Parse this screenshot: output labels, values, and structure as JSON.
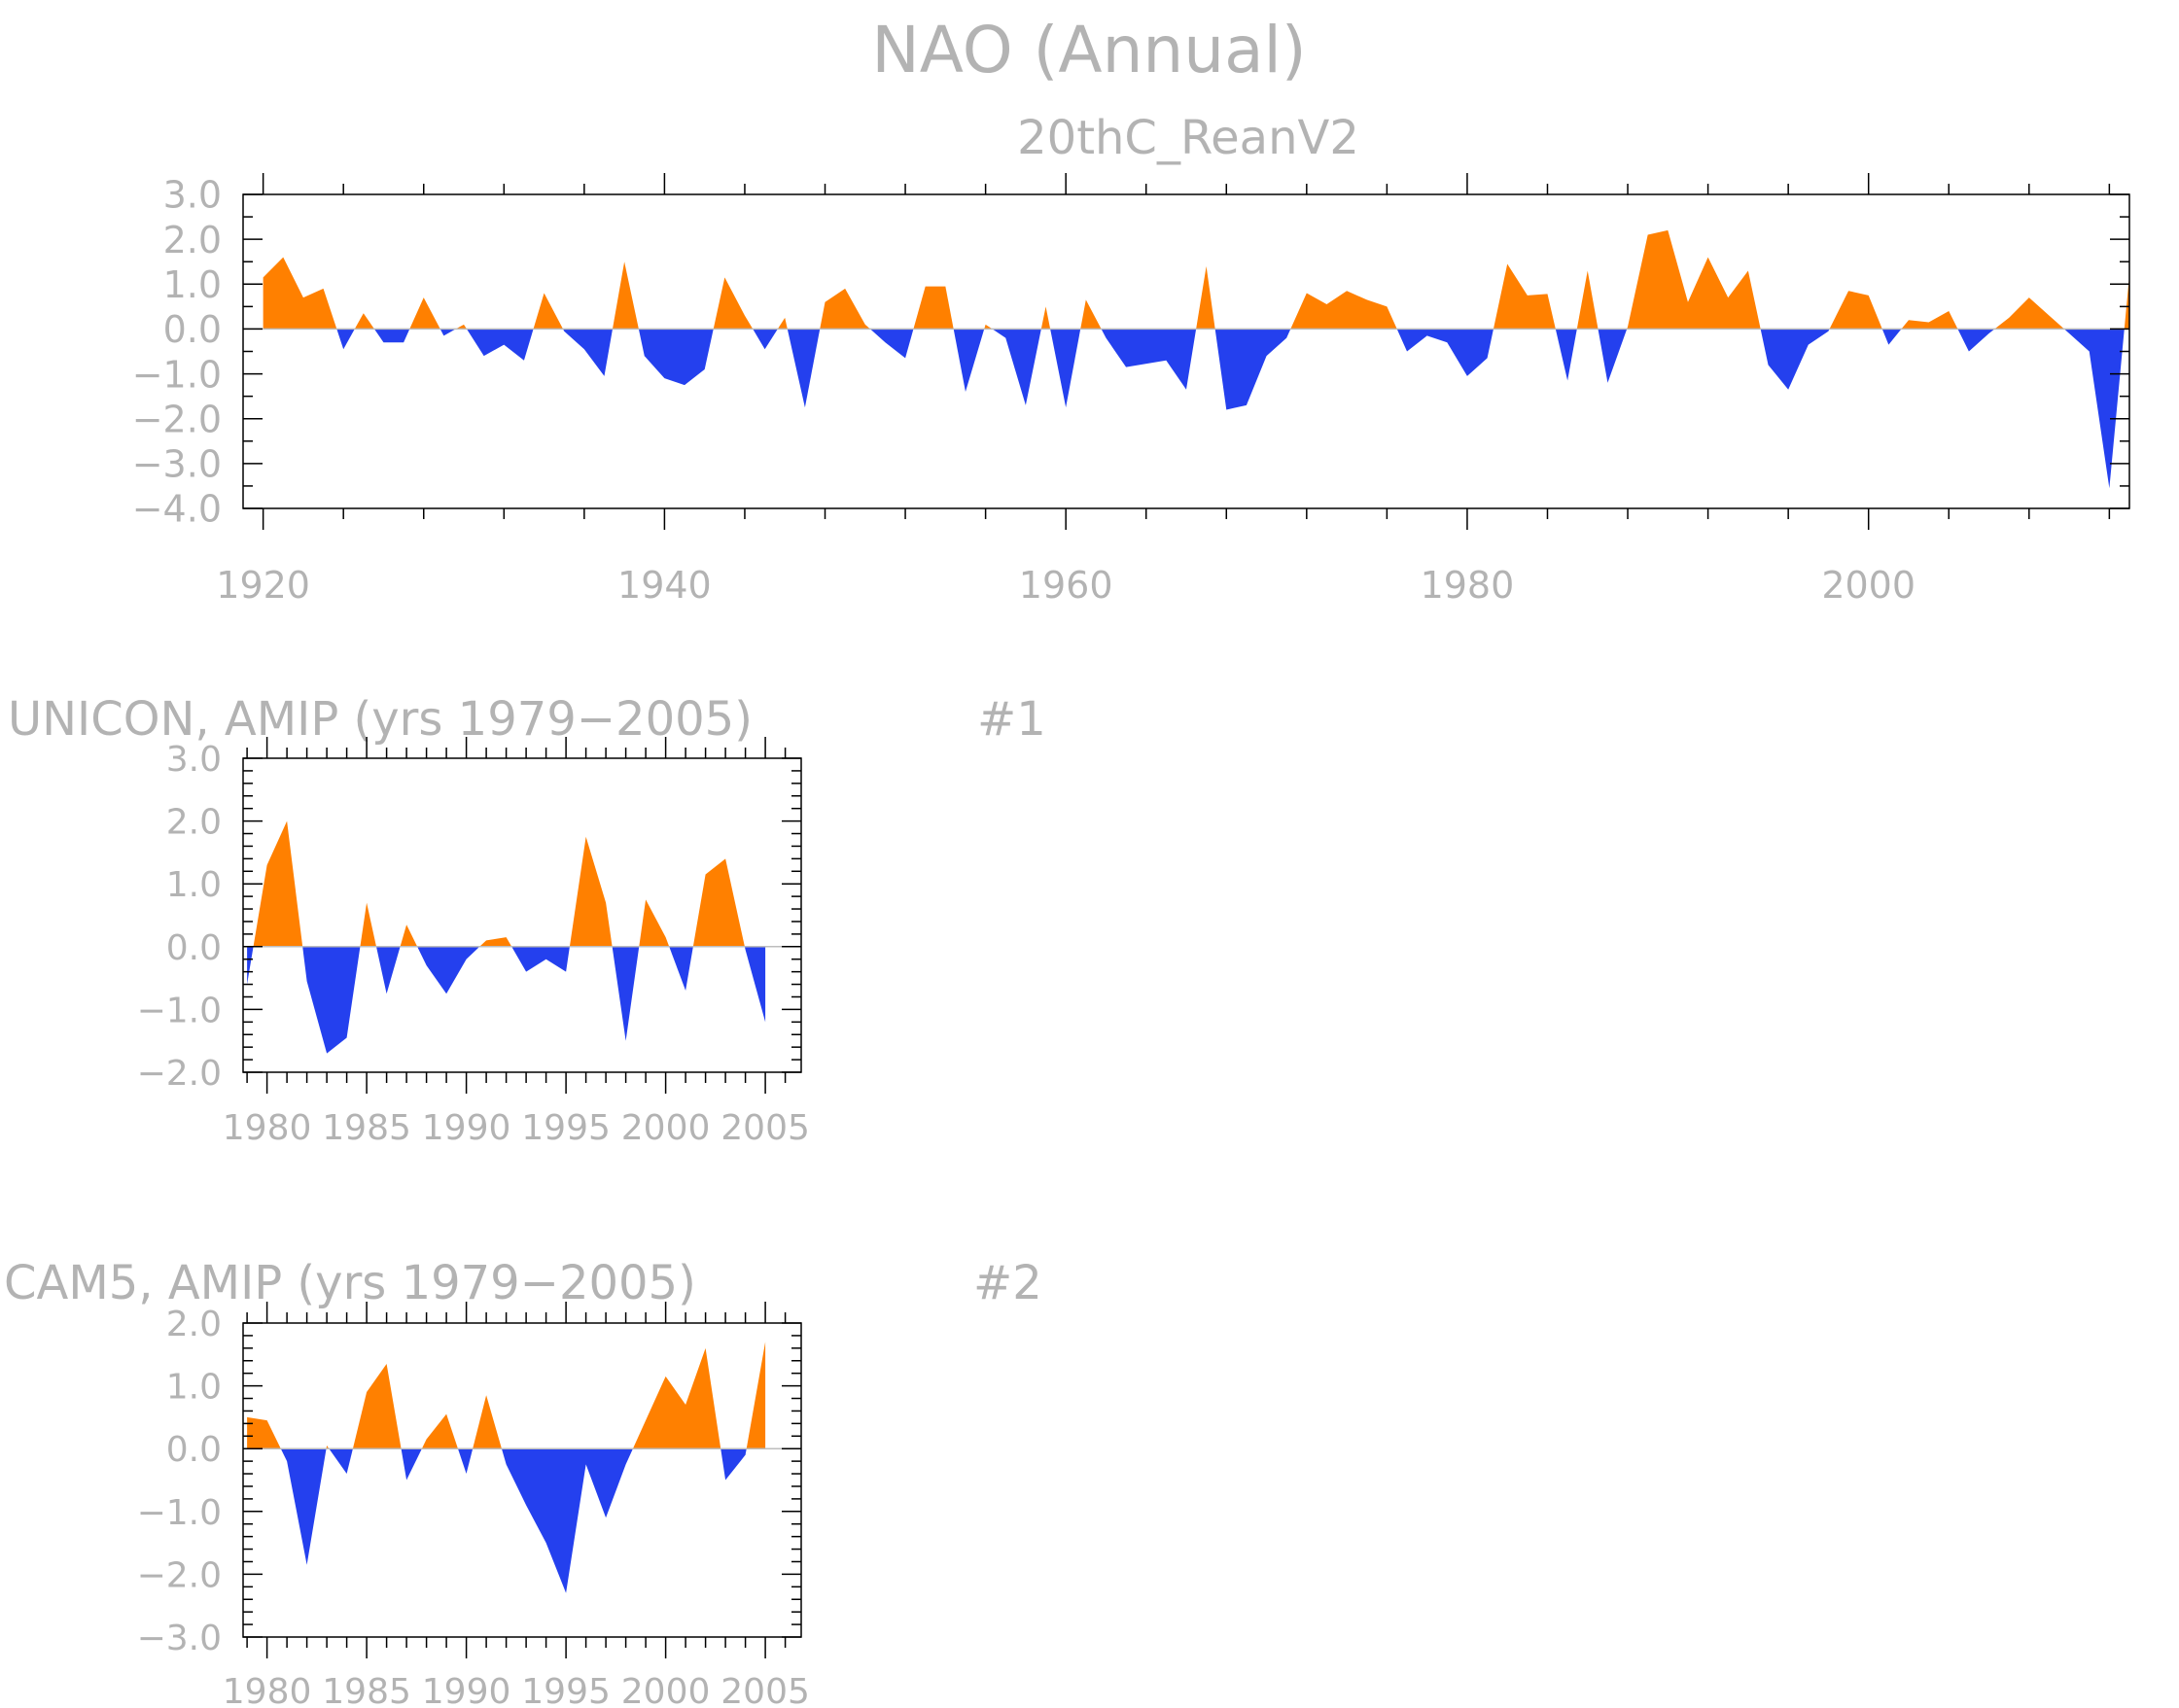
{
  "figure": {
    "title": "NAO (Annual)",
    "colors": {
      "positive": "#ff8000",
      "negative": "#2440ee",
      "text": "#b3b3b3"
    }
  },
  "chart_data": [
    {
      "type": "area",
      "title": "20thC_ReanV2",
      "panel_label": "",
      "xlim": [
        1919,
        2013
      ],
      "ylim": [
        -4.0,
        3.0
      ],
      "yticks": [
        3.0,
        2.0,
        1.0,
        0.0,
        -1.0,
        -2.0,
        -3.0,
        -4.0
      ],
      "ytick_labels": [
        "3.0",
        "2.0",
        "1.0",
        "0.0",
        "−1.0",
        "−2.0",
        "−3.0",
        "−4.0"
      ],
      "xticks": [
        1920,
        1940,
        1960,
        1980,
        2000
      ],
      "xtick_labels": [
        "1920",
        "1940",
        "1960",
        "1980",
        "2000"
      ],
      "x_start": 1920,
      "values": [
        1.15,
        1.6,
        0.7,
        0.9,
        -0.45,
        0.35,
        -0.3,
        -0.3,
        0.7,
        -0.15,
        0.1,
        -0.6,
        -0.35,
        -0.7,
        0.8,
        -0.05,
        -0.45,
        -1.05,
        1.5,
        -0.6,
        -1.1,
        -1.25,
        -0.9,
        1.15,
        0.3,
        -0.45,
        0.25,
        -1.75,
        0.6,
        0.9,
        0.1,
        -0.3,
        -0.65,
        0.95,
        0.95,
        -1.4,
        0.1,
        -0.2,
        -1.7,
        0.5,
        -1.75,
        0.65,
        -0.2,
        -0.85,
        0.0,
        -0.7,
        -1.35,
        1.4,
        -1.8,
        -1.7,
        -0.6,
        -0.2,
        0.8,
        0.55,
        0.85,
        0.65,
        0.5,
        -0.5,
        -0.15,
        -0.3,
        -1.05,
        -0.65,
        1.45,
        0.75,
        0.78,
        -1.15,
        1.3,
        -1.2,
        0.05,
        2.1,
        2.2,
        0.6,
        1.6,
        0.7,
        1.3,
        -0.8,
        -1.35,
        -0.35,
        -0.05,
        0.85,
        0.75,
        -0.35,
        0.2,
        0.15,
        0.4,
        -0.5,
        -0.1,
        0.25,
        0.7,
        0.3,
        -0.1,
        -0.5,
        -3.55,
        1.2
      ]
    },
    {
      "type": "area",
      "title": "UNICON, AMIP (yrs 1979−2005)",
      "panel_label": "#1",
      "xlim": [
        1978.8,
        2006.8
      ],
      "ylim": [
        -2.0,
        3.0
      ],
      "yticks": [
        3.0,
        2.0,
        1.0,
        0.0,
        -1.0,
        -2.0
      ],
      "ytick_labels": [
        "3.0",
        "2.0",
        "1.0",
        "0.0",
        "−1.0",
        "−2.0"
      ],
      "xticks": [
        1980,
        1985,
        1990,
        1995,
        2000,
        2005
      ],
      "xtick_labels": [
        "1980",
        "1985",
        "1990",
        "1995",
        "2000",
        "2005"
      ],
      "x_start": 1979,
      "values": [
        -0.6,
        1.3,
        2.0,
        -0.55,
        -1.7,
        -1.45,
        0.7,
        -0.75,
        0.35,
        -0.3,
        -0.75,
        -0.2,
        0.1,
        0.15,
        -0.4,
        -0.2,
        -0.4,
        1.75,
        0.7,
        -1.5,
        0.75,
        0.15,
        -0.7,
        1.15,
        1.4,
        -0.05,
        -1.2
      ]
    },
    {
      "type": "area",
      "title": "CAM5, AMIP (yrs 1979−2005)",
      "panel_label": "#2",
      "xlim": [
        1978.8,
        2006.8
      ],
      "ylim": [
        -3.0,
        2.0
      ],
      "yticks": [
        2.0,
        1.0,
        0.0,
        -1.0,
        -2.0,
        -3.0
      ],
      "ytick_labels": [
        "2.0",
        "1.0",
        "0.0",
        "−1.0",
        "−2.0",
        "−3.0"
      ],
      "xticks": [
        1980,
        1985,
        1990,
        1995,
        2000,
        2005
      ],
      "xtick_labels": [
        "1980",
        "1985",
        "1990",
        "1995",
        "2000",
        "2005"
      ],
      "x_start": 1979,
      "values": [
        0.5,
        0.45,
        -0.2,
        -1.85,
        0.05,
        -0.4,
        0.9,
        1.35,
        -0.5,
        0.15,
        0.55,
        -0.4,
        0.85,
        -0.25,
        -0.9,
        -1.5,
        -2.3,
        -0.25,
        -1.1,
        -0.25,
        0.45,
        1.15,
        0.7,
        1.6,
        -0.5,
        -0.1,
        1.7
      ]
    }
  ]
}
